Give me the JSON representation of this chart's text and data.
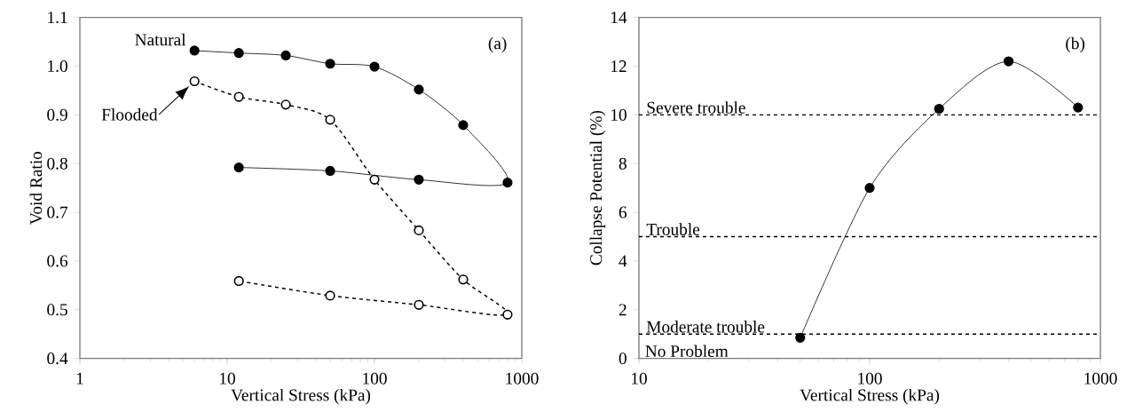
{
  "chart_data": [
    {
      "type": "line",
      "xlabel": "Vertical Stress (kPa)",
      "ylabel": "Void Ratio",
      "log": "x",
      "xlim": [
        1,
        1000
      ],
      "ylim": [
        0.4,
        1.1
      ],
      "xticks": [
        1,
        10,
        100,
        1000
      ],
      "yticks": [
        {
          "value": 0.4,
          "label": "0.4"
        },
        {
          "value": 0.5,
          "label": "0.5"
        },
        {
          "value": 0.6,
          "label": "0.6"
        },
        {
          "value": 0.7,
          "label": "0.7"
        },
        {
          "value": 0.8,
          "label": "0.8"
        },
        {
          "value": 0.9,
          "label": "0.9"
        },
        {
          "value": 1.0,
          "label": "1.0"
        },
        {
          "value": 1.1,
          "label": "1.1"
        }
      ],
      "grid": false,
      "marker": "circle",
      "annotations": [
        "(a)",
        {
          "text": "Flooded",
          "x": 6,
          "y": 0.969
        }
      ],
      "series": [
        {
          "name": "Natural",
          "color": "#000000",
          "line_style": "solid",
          "x": [
            6,
            12,
            25,
            50,
            100,
            200,
            400,
            800,
            200,
            50,
            12
          ],
          "values": [
            1.032,
            1.027,
            1.022,
            1.005,
            0.999,
            0.952,
            0.879,
            0.761,
            0.767,
            0.785,
            0.792
          ]
        },
        {
          "color": "#000000",
          "line_style": "dashed",
          "x": [
            6,
            12,
            25,
            50,
            100,
            200,
            400,
            800,
            200,
            50,
            12
          ],
          "values": [
            0.969,
            0.937,
            0.921,
            0.89,
            0.767,
            0.663,
            0.562,
            0.49,
            0.51,
            0.529,
            0.559
          ]
        }
      ]
    },
    {
      "type": "line",
      "xlabel": "Vertical Stress (kPa)",
      "ylabel": "Collapse Potential (%)",
      "log": "x",
      "xlim": [
        10,
        1000
      ],
      "ylim": [
        0,
        14
      ],
      "xticks": [
        10,
        100,
        1000
      ],
      "yticks": [
        0,
        2,
        4,
        6,
        8,
        10,
        12,
        14
      ],
      "grid": false,
      "marker": "circle",
      "line_style": "solid",
      "x": [
        50,
        100,
        200,
        400,
        800
      ],
      "values": [
        0.85,
        7.0,
        10.25,
        12.2,
        10.3
      ],
      "color": "#000000",
      "ref_lines": [
        {
          "axis": "y",
          "value": 10,
          "label": "Severe trouble",
          "color": "#000000",
          "line_style": "dashed"
        },
        {
          "axis": "y",
          "value": 5,
          "label": "Trouble",
          "color": "#000000",
          "line_style": "dashed"
        },
        {
          "axis": "y",
          "value": 1,
          "label": "Moderate trouble",
          "color": "#000000",
          "line_style": "dashed"
        }
      ],
      "annotations": [
        "(b)",
        "No Problem"
      ]
    }
  ]
}
